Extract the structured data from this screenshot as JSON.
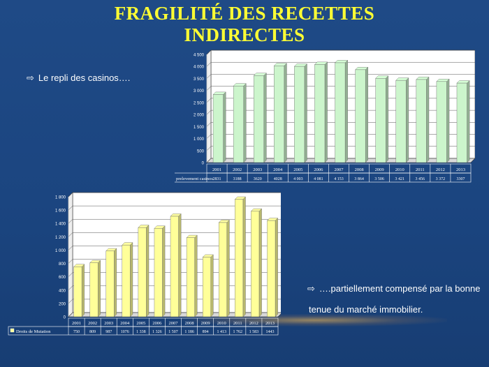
{
  "slide": {
    "title_line1": "FRAGILITÉ DES RECETTES",
    "title_line2": "INDIRECTES",
    "bullet1": "Le repli des casinos….",
    "bullet2_line1": "….partiellement  compensé par la bonne",
    "bullet2_line2": "tenue  du marché immobilier.",
    "arrow_icon": "⇨"
  },
  "colors": {
    "background": "#1f4a86",
    "title": "#ffff33",
    "casino_bar": "#ccf5cc",
    "mutation_bar": "#ffff99"
  },
  "chart_data": [
    {
      "type": "bar",
      "categories": [
        "2001",
        "2002",
        "2003",
        "2004",
        "2005",
        "2006",
        "2007",
        "2008",
        "2009",
        "2010",
        "2011",
        "2012",
        "2013"
      ],
      "series": [
        {
          "name": "prelevement casinos",
          "values": [
            2831,
            3188,
            3620,
            4028,
            4003,
            4081,
            4153,
            3864,
            3506,
            3421,
            3456,
            3372,
            3307
          ],
          "table_labels": [
            "2831",
            "3188",
            "3620",
            "4028",
            "4 003",
            "4 081",
            "4 153",
            "3 864",
            "3 506",
            "3 421",
            "3 456",
            "3 372",
            "3307"
          ]
        }
      ],
      "ylim": [
        0,
        4500
      ],
      "yticks": [
        0,
        500,
        1000,
        1500,
        2000,
        2500,
        3000,
        3500,
        4000,
        4500
      ],
      "ytick_labels": [
        "0",
        "500",
        "1 000",
        "1 500",
        "2 000",
        "2 500",
        "3 000",
        "3 500",
        "4 000",
        "4 500"
      ],
      "grid": true,
      "legend": "data-table-below"
    },
    {
      "type": "bar",
      "categories": [
        "2001",
        "2002",
        "2003",
        "2004",
        "2005",
        "2006",
        "2007",
        "2008",
        "2009",
        "2010",
        "2011",
        "2012",
        "2013"
      ],
      "series": [
        {
          "name": "Droits de Mutation",
          "values": [
            750,
            809,
            987,
            1076,
            1338,
            1326,
            1507,
            1186,
            894,
            1413,
            1762,
            1583,
            1443
          ],
          "table_labels": [
            "750",
            "809",
            "987",
            "1076",
            "1 338",
            "1 326",
            "1 507",
            "1 186",
            "894",
            "1 413",
            "1 762",
            "1 583",
            "1443"
          ]
        }
      ],
      "ylim": [
        0,
        1800
      ],
      "yticks": [
        0,
        200,
        400,
        600,
        800,
        1000,
        1200,
        1400,
        1600,
        1800
      ],
      "ytick_labels": [
        "0",
        "200",
        "400",
        "600",
        "800",
        "1 000",
        "1 200",
        "1 400",
        "1 600",
        "1 800"
      ],
      "grid": true,
      "legend": "data-table-below"
    }
  ]
}
